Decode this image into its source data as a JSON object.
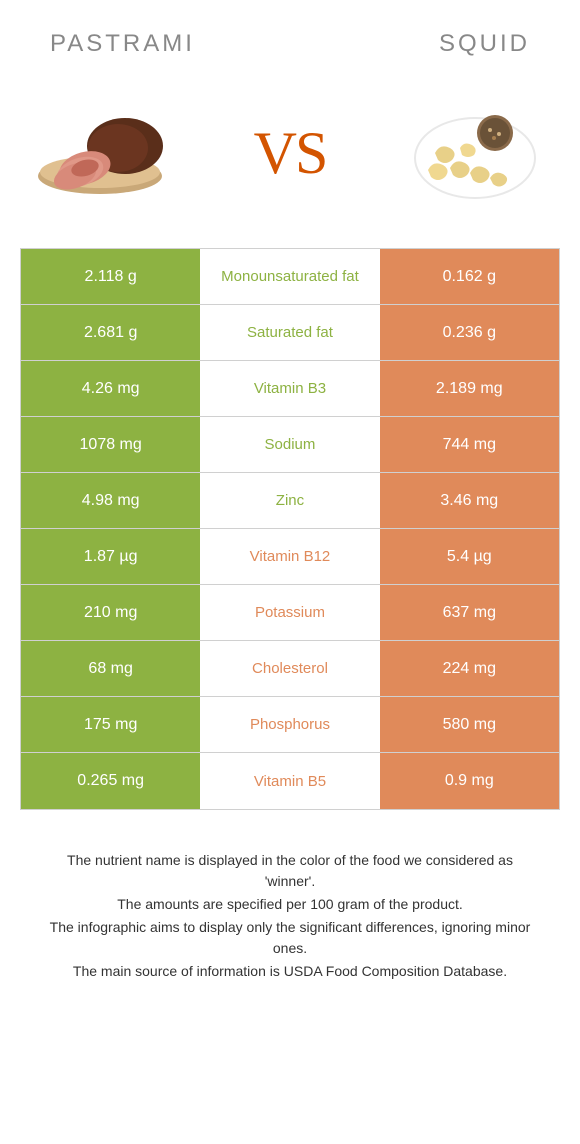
{
  "left_food": "Pastrami",
  "right_food": "Squid",
  "vs_label": "VS",
  "colors": {
    "left": "#8db242",
    "right": "#e08a5a",
    "left_text": "#8db242",
    "right_text": "#e08a5a",
    "border": "#d0d0d0",
    "title": "#888888",
    "vs": "#d35400"
  },
  "rows": [
    {
      "left": "2.118 g",
      "label": "Monounsaturated fat",
      "right": "0.162 g",
      "winner": "left"
    },
    {
      "left": "2.681 g",
      "label": "Saturated fat",
      "right": "0.236 g",
      "winner": "left"
    },
    {
      "left": "4.26 mg",
      "label": "Vitamin B3",
      "right": "2.189 mg",
      "winner": "left"
    },
    {
      "left": "1078 mg",
      "label": "Sodium",
      "right": "744 mg",
      "winner": "left"
    },
    {
      "left": "4.98 mg",
      "label": "Zinc",
      "right": "3.46 mg",
      "winner": "left"
    },
    {
      "left": "1.87 µg",
      "label": "Vitamin B12",
      "right": "5.4 µg",
      "winner": "right"
    },
    {
      "left": "210 mg",
      "label": "Potassium",
      "right": "637 mg",
      "winner": "right"
    },
    {
      "left": "68 mg",
      "label": "Cholesterol",
      "right": "224 mg",
      "winner": "right"
    },
    {
      "left": "175 mg",
      "label": "Phosphorus",
      "right": "580 mg",
      "winner": "right"
    },
    {
      "left": "0.265 mg",
      "label": "Vitamin B5",
      "right": "0.9 mg",
      "winner": "right"
    }
  ],
  "footer": [
    "The nutrient name is displayed in the color of the food we considered as 'winner'.",
    "The amounts are specified per 100 gram of the product.",
    "The infographic aims to display only the significant differences, ignoring minor ones.",
    "The main source of information is USDA Food Composition Database."
  ]
}
